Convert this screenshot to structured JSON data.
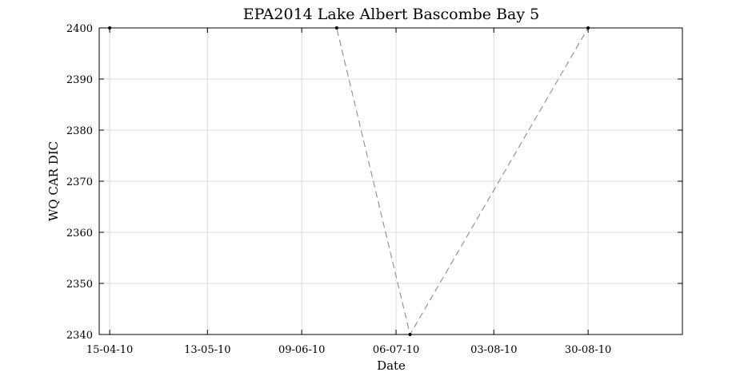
{
  "chart_data": {
    "type": "line",
    "title": "EPA2014 Lake Albert Bascombe Bay 5",
    "xlabel": "Date",
    "ylabel": "WQ CAR DIC",
    "x_tick_labels": [
      "15-04-10",
      "13-05-10",
      "09-06-10",
      "06-07-10",
      "03-08-10",
      "30-08-10"
    ],
    "x_tick_dates": [
      "2010-04-15",
      "2010-05-13",
      "2010-06-09",
      "2010-07-06",
      "2010-08-03",
      "2010-08-30"
    ],
    "xlim": [
      "2010-04-15",
      "2010-09-26"
    ],
    "ylim": [
      2340,
      2400
    ],
    "y_ticks": [
      2340,
      2350,
      2360,
      2370,
      2380,
      2390,
      2400
    ],
    "grid": true,
    "series": [
      {
        "x": [
          "2010-04-15",
          "2010-06-19",
          "2010-07-10",
          "2010-08-30"
        ],
        "y": [
          2400,
          2400,
          2340,
          2400
        ],
        "line_style": "dashed",
        "line_color": "#8c8c8c",
        "marker_color": "#000000"
      }
    ]
  }
}
